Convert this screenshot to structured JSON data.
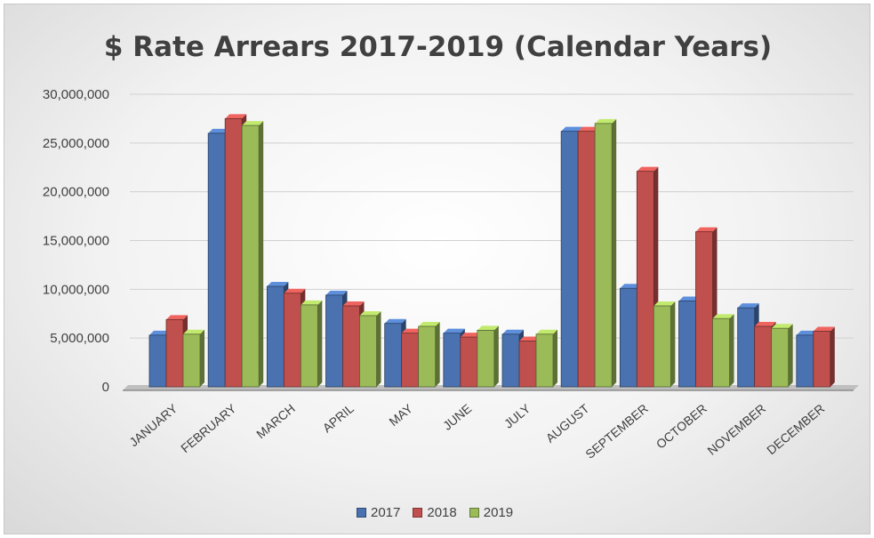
{
  "chart_data": {
    "type": "bar",
    "title": "$ Rate Arrears 2017-2019 (Calendar Years)",
    "xlabel": "",
    "ylabel": "",
    "ylim": [
      0,
      30000000
    ],
    "yticks": [
      0,
      5000000,
      10000000,
      15000000,
      20000000,
      25000000,
      30000000
    ],
    "ytick_labels": [
      "0",
      "5,000,000",
      "10,000,000",
      "15,000,000",
      "20,000,000",
      "25,000,000",
      "30,000,000"
    ],
    "categories": [
      "JANUARY",
      "FEBRUARY",
      "MARCH",
      "APRIL",
      "MAY",
      "JUNE",
      "JULY",
      "AUGUST",
      "SEPTEMBER",
      "OCTOBER",
      "NOVEMBER",
      "DECEMBER"
    ],
    "series": [
      {
        "name": "2017",
        "color": "#4a72b0",
        "values": [
          5300000,
          26000000,
          10300000,
          9400000,
          6500000,
          5500000,
          5400000,
          26200000,
          10100000,
          8800000,
          8100000,
          5300000
        ]
      },
      {
        "name": "2018",
        "color": "#c0504d",
        "values": [
          6900000,
          27500000,
          9600000,
          8300000,
          5500000,
          5100000,
          4700000,
          26200000,
          22100000,
          15900000,
          6200000,
          5700000
        ]
      },
      {
        "name": "2019",
        "color": "#9bbb59",
        "values": [
          5400000,
          26800000,
          8400000,
          7300000,
          6200000,
          5800000,
          5400000,
          27000000,
          8300000,
          7000000,
          6000000,
          null
        ]
      }
    ],
    "grid": true,
    "legend_position": "bottom"
  }
}
